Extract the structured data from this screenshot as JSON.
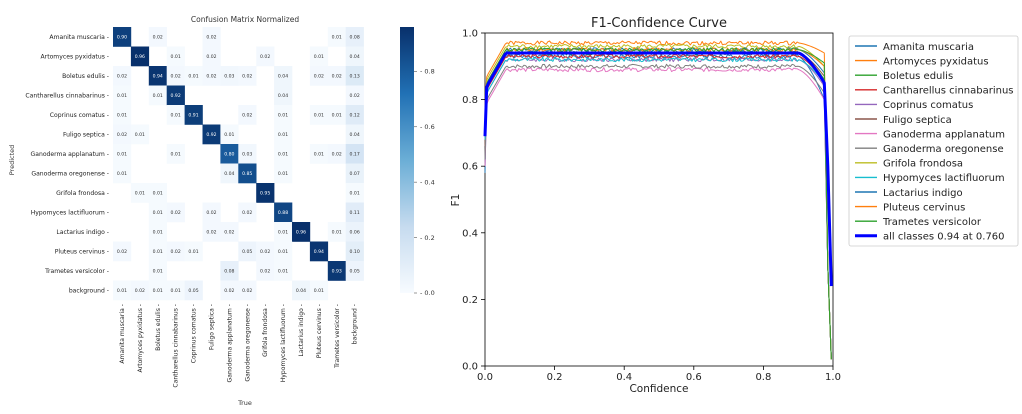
{
  "chart_data": [
    {
      "type": "heatmap",
      "title": "Confusion Matrix Normalized",
      "xlabel": "True",
      "ylabel": "Predicted",
      "row_labels": [
        "Amanita muscaria",
        "Artomyces pyxidatus",
        "Boletus edulis",
        "Cantharellus cinnabarinus",
        "Coprinus comatus",
        "Fuligo septica",
        "Ganoderma applanatum",
        "Ganoderma oregonense",
        "Grifola frondosa",
        "Hypomyces lactifluorum",
        "Lactarius indigo",
        "Pluteus cervinus",
        "Trametes versicolor",
        "background"
      ],
      "col_labels": [
        "Amanita muscaria",
        "Artomyces pyxidatus",
        "Boletus edulis",
        "Cantharellus cinnabarinus",
        "Coprinus comatus",
        "Fuligo septica",
        "Ganoderma applanatum",
        "Ganoderma oregonense",
        "Grifola frondosa",
        "Hypomyces lactifluorum",
        "Lactarius indigo",
        "Pluteus cervinus",
        "Trametes versicolor",
        "background"
      ],
      "cells": [
        [
          0,
          0,
          "0.90"
        ],
        [
          0,
          2,
          "0.02"
        ],
        [
          0,
          5,
          "0.02"
        ],
        [
          0,
          12,
          "0.01"
        ],
        [
          0,
          13,
          "0.08"
        ],
        [
          1,
          1,
          "0.96"
        ],
        [
          1,
          3,
          "0.01"
        ],
        [
          1,
          5,
          "0.02"
        ],
        [
          1,
          8,
          "0.02"
        ],
        [
          1,
          11,
          "0.01"
        ],
        [
          1,
          13,
          "0.04"
        ],
        [
          2,
          0,
          "0.02"
        ],
        [
          2,
          2,
          "0.94"
        ],
        [
          2,
          3,
          "0.02"
        ],
        [
          2,
          4,
          "0.01"
        ],
        [
          2,
          5,
          "0.02"
        ],
        [
          2,
          6,
          "0.03"
        ],
        [
          2,
          7,
          "0.02"
        ],
        [
          2,
          9,
          "0.04"
        ],
        [
          2,
          11,
          "0.02"
        ],
        [
          2,
          12,
          "0.02"
        ],
        [
          2,
          13,
          "0.13"
        ],
        [
          3,
          0,
          "0.01"
        ],
        [
          3,
          2,
          "0.01"
        ],
        [
          3,
          3,
          "0.92"
        ],
        [
          3,
          9,
          "0.04"
        ],
        [
          3,
          13,
          "0.02"
        ],
        [
          4,
          0,
          "0.01"
        ],
        [
          4,
          3,
          "0.01"
        ],
        [
          4,
          4,
          "0.91"
        ],
        [
          4,
          7,
          "0.02"
        ],
        [
          4,
          9,
          "0.01"
        ],
        [
          4,
          11,
          "0.01"
        ],
        [
          4,
          12,
          "0.01"
        ],
        [
          4,
          13,
          "0.12"
        ],
        [
          5,
          0,
          "0.02"
        ],
        [
          5,
          1,
          "0.01"
        ],
        [
          5,
          5,
          "0.92"
        ],
        [
          5,
          6,
          "0.01"
        ],
        [
          5,
          9,
          "0.01"
        ],
        [
          5,
          13,
          "0.04"
        ],
        [
          6,
          0,
          "0.01"
        ],
        [
          6,
          3,
          "0.01"
        ],
        [
          6,
          6,
          "0.80"
        ],
        [
          6,
          7,
          "0.03"
        ],
        [
          6,
          9,
          "0.01"
        ],
        [
          6,
          11,
          "0.01"
        ],
        [
          6,
          12,
          "0.02"
        ],
        [
          6,
          13,
          "0.17"
        ],
        [
          7,
          0,
          "0.01"
        ],
        [
          7,
          6,
          "0.04"
        ],
        [
          7,
          7,
          "0.85"
        ],
        [
          7,
          9,
          "0.01"
        ],
        [
          7,
          13,
          "0.07"
        ],
        [
          8,
          1,
          "0.01"
        ],
        [
          8,
          2,
          "0.01"
        ],
        [
          8,
          8,
          "0.95"
        ],
        [
          8,
          13,
          "0.01"
        ],
        [
          9,
          2,
          "0.01"
        ],
        [
          9,
          3,
          "0.02"
        ],
        [
          9,
          5,
          "0.02"
        ],
        [
          9,
          7,
          "0.02"
        ],
        [
          9,
          9,
          "0.88"
        ],
        [
          9,
          13,
          "0.11"
        ],
        [
          10,
          2,
          "0.01"
        ],
        [
          10,
          5,
          "0.02"
        ],
        [
          10,
          6,
          "0.02"
        ],
        [
          10,
          9,
          "0.01"
        ],
        [
          10,
          10,
          "0.96"
        ],
        [
          10,
          12,
          "0.01"
        ],
        [
          10,
          13,
          "0.06"
        ],
        [
          11,
          0,
          "0.02"
        ],
        [
          11,
          2,
          "0.01"
        ],
        [
          11,
          3,
          "0.02"
        ],
        [
          11,
          4,
          "0.01"
        ],
        [
          11,
          7,
          "0.05"
        ],
        [
          11,
          8,
          "0.02"
        ],
        [
          11,
          9,
          "0.01"
        ],
        [
          11,
          11,
          "0.94"
        ],
        [
          11,
          13,
          "0.10"
        ],
        [
          12,
          2,
          "0.01"
        ],
        [
          12,
          6,
          "0.08"
        ],
        [
          12,
          8,
          "0.02"
        ],
        [
          12,
          9,
          "0.01"
        ],
        [
          12,
          12,
          "0.93"
        ],
        [
          12,
          13,
          "0.05"
        ],
        [
          13,
          0,
          "0.01"
        ],
        [
          13,
          1,
          "0.02"
        ],
        [
          13,
          2,
          "0.01"
        ],
        [
          13,
          3,
          "0.01"
        ],
        [
          13,
          4,
          "0.05"
        ],
        [
          13,
          6,
          "0.02"
        ],
        [
          13,
          7,
          "0.02"
        ],
        [
          13,
          10,
          "0.04"
        ],
        [
          13,
          11,
          "0.01"
        ]
      ],
      "colorbar_ticks": [
        "0.8",
        "0.6",
        "0.4",
        "0.2",
        "0.0"
      ],
      "colormap_colors": [
        "#f7fbff",
        "#c6dbef",
        "#6baed6",
        "#2171b5",
        "#08306b"
      ]
    },
    {
      "type": "line",
      "title": "F1-Confidence Curve",
      "xlabel": "Confidence",
      "ylabel": "F1",
      "xlim": [
        0,
        1
      ],
      "ylim": [
        0,
        1
      ],
      "xticks": [
        "0.0",
        "0.2",
        "0.4",
        "0.6",
        "0.8",
        "1.0"
      ],
      "yticks": [
        "0.0",
        "0.2",
        "0.4",
        "0.6",
        "0.8",
        "1.0"
      ],
      "legend_position": "outside-right",
      "series": [
        {
          "name": "Amanita muscaria",
          "color": "#1f77b4",
          "start": 0.58,
          "plateau": 0.93,
          "end": 0.8
        },
        {
          "name": "Artomyces pyxidatus",
          "color": "#ff7f0e",
          "start": 0.78,
          "plateau": 0.97,
          "end": 0.94
        },
        {
          "name": "Boletus edulis",
          "color": "#2ca02c",
          "start": 0.7,
          "plateau": 0.94,
          "end": 0.86
        },
        {
          "name": "Cantharellus cinnabarinus",
          "color": "#d62728",
          "start": 0.72,
          "plateau": 0.93,
          "end": 0.85
        },
        {
          "name": "Coprinus comatus",
          "color": "#9467bd",
          "start": 0.72,
          "plateau": 0.92,
          "end": 0.84
        },
        {
          "name": "Fuligo septica",
          "color": "#8c564b",
          "start": 0.66,
          "plateau": 0.94,
          "end": 0.87
        },
        {
          "name": "Ganoderma applanatum",
          "color": "#e377c2",
          "start": 0.6,
          "plateau": 0.89,
          "end": 0.8
        },
        {
          "name": "Ganoderma oregonense",
          "color": "#7f7f7f",
          "start": 0.62,
          "plateau": 0.9,
          "end": 0.82
        },
        {
          "name": "Grifola frondosa",
          "color": "#bcbd22",
          "start": 0.74,
          "plateau": 0.96,
          "end": 0.9
        },
        {
          "name": "Hypomyces lactifluorum",
          "color": "#17becf",
          "start": 0.68,
          "plateau": 0.92,
          "end": 0.85
        },
        {
          "name": "Lactarius indigo",
          "color": "#1f77b4",
          "start": 0.74,
          "plateau": 0.95,
          "end": 0.88
        },
        {
          "name": "Pluteus cervinus",
          "color": "#ff7f0e",
          "start": 0.7,
          "plateau": 0.95,
          "end": 0.9
        },
        {
          "name": "Trametes versicolor",
          "color": "#2ca02c",
          "start": 0.72,
          "plateau": 0.95,
          "end": 0.91
        },
        {
          "name": "all classes 0.94 at 0.760",
          "color": "#0000ff",
          "start": 0.69,
          "plateau": 0.94,
          "end": 0.85,
          "bold": true
        }
      ]
    }
  ]
}
